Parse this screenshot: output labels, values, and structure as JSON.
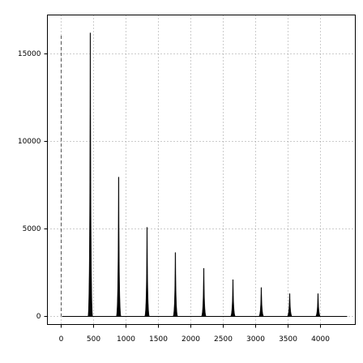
{
  "chart_data": {
    "type": "stem",
    "x": [
      450,
      887,
      1325,
      1762,
      2200,
      2650,
      3087,
      3525,
      3962
    ],
    "values": [
      16200,
      7960,
      5090,
      3650,
      2750,
      2100,
      1650,
      1300,
      1300
    ],
    "color": "#000000",
    "xlim": [
      -212,
      4537
    ],
    "ylim": [
      -463,
      17222
    ],
    "xticks": [
      0,
      500,
      1000,
      1500,
      2000,
      2500,
      3000,
      3500,
      4000
    ],
    "yticks": [
      0,
      5000,
      10000,
      15000
    ],
    "grid": true
  }
}
